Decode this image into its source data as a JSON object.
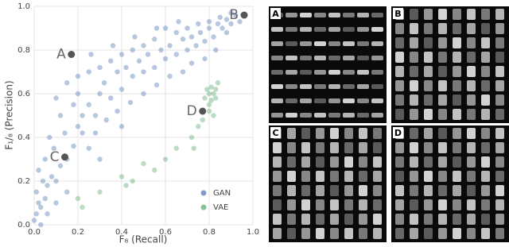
{
  "chart_data": {
    "type": "scatter",
    "xlabel": "F₈ (Recall)",
    "ylabel": "F₁/₈ (Precision)",
    "xlim": [
      0,
      1
    ],
    "ylim": [
      0,
      1
    ],
    "xticks": [
      {
        "value": 0,
        "label": "0.0"
      },
      {
        "value": 0.2,
        "label": "0.2"
      },
      {
        "value": 0.4,
        "label": "0.4"
      },
      {
        "value": 0.6,
        "label": "0.6"
      },
      {
        "value": 0.8,
        "label": "0.8"
      },
      {
        "value": 1,
        "label": "1.0"
      }
    ],
    "yticks": [
      {
        "value": 0,
        "label": "0.0"
      },
      {
        "value": 0.2,
        "label": "0.2"
      },
      {
        "value": 0.4,
        "label": "0.4"
      },
      {
        "value": 0.6,
        "label": "0.6"
      },
      {
        "value": 0.8,
        "label": "0.8"
      },
      {
        "value": 1,
        "label": "1.0"
      }
    ],
    "grid": true,
    "legend": "lower right",
    "series": [
      {
        "name": "GAN",
        "color": "#4c72b0",
        "x": [
          0.0,
          0.01,
          0.02,
          0.01,
          0.03,
          0.05,
          0.04,
          0.06,
          0.08,
          0.02,
          0.1,
          0.12,
          0.09,
          0.15,
          0.05,
          0.18,
          0.2,
          0.22,
          0.12,
          0.25,
          0.28,
          0.3,
          0.2,
          0.32,
          0.35,
          0.38,
          0.4,
          0.42,
          0.45,
          0.48,
          0.5,
          0.52,
          0.55,
          0.58,
          0.6,
          0.62,
          0.65,
          0.68,
          0.7,
          0.72,
          0.74,
          0.76,
          0.78,
          0.8,
          0.82,
          0.84,
          0.86,
          0.88,
          0.9,
          0.92,
          0.94,
          0.85,
          0.88,
          0.9,
          0.8,
          0.75,
          0.7,
          0.65,
          0.6,
          0.55,
          0.5,
          0.45,
          0.4,
          0.35,
          0.3,
          0.25,
          0.2,
          0.15,
          0.1,
          0.28,
          0.33,
          0.38,
          0.44,
          0.5,
          0.56,
          0.62,
          0.3,
          0.25,
          0.4,
          0.18,
          0.22,
          0.14,
          0.07,
          0.26,
          0.36,
          0.46,
          0.56,
          0.66,
          0.03,
          0.06,
          0.15,
          0.1,
          0.78,
          0.72,
          0.68,
          0.83
        ],
        "y": [
          0.02,
          0.05,
          0.1,
          0.15,
          0.08,
          0.12,
          0.2,
          0.18,
          0.22,
          0.25,
          0.2,
          0.27,
          0.35,
          0.3,
          0.3,
          0.36,
          0.45,
          0.42,
          0.5,
          0.55,
          0.5,
          0.6,
          0.6,
          0.65,
          0.58,
          0.7,
          0.62,
          0.72,
          0.68,
          0.75,
          0.7,
          0.78,
          0.72,
          0.8,
          0.76,
          0.82,
          0.78,
          0.85,
          0.8,
          0.86,
          0.82,
          0.88,
          0.84,
          0.9,
          0.86,
          0.92,
          0.9,
          0.94,
          0.92,
          0.96,
          0.93,
          0.95,
          0.88,
          0.97,
          0.93,
          0.92,
          0.9,
          0.88,
          0.9,
          0.85,
          0.82,
          0.8,
          0.78,
          0.75,
          0.72,
          0.7,
          0.68,
          0.65,
          0.58,
          0.42,
          0.48,
          0.52,
          0.56,
          0.6,
          0.64,
          0.68,
          0.3,
          0.35,
          0.45,
          0.55,
          0.5,
          0.42,
          0.4,
          0.78,
          0.82,
          0.86,
          0.9,
          0.93,
          0.0,
          0.05,
          0.15,
          0.1,
          0.76,
          0.74,
          0.7,
          0.8
        ]
      },
      {
        "name": "VAE",
        "color": "#55a868",
        "x": [
          0.8,
          0.82,
          0.81,
          0.83,
          0.79,
          0.84,
          0.8,
          0.82,
          0.78,
          0.81,
          0.83,
          0.8,
          0.77,
          0.75,
          0.72,
          0.73,
          0.65,
          0.6,
          0.55,
          0.5,
          0.45,
          0.4,
          0.3,
          0.22,
          0.2,
          0.42
        ],
        "y": [
          0.55,
          0.6,
          0.63,
          0.58,
          0.62,
          0.65,
          0.52,
          0.5,
          0.58,
          0.57,
          0.62,
          0.6,
          0.48,
          0.45,
          0.4,
          0.35,
          0.35,
          0.3,
          0.25,
          0.28,
          0.2,
          0.22,
          0.15,
          0.08,
          0.12,
          0.18
        ]
      }
    ],
    "annotations": [
      {
        "label": "A",
        "x": 0.17,
        "y": 0.78
      },
      {
        "label": "B",
        "x": 0.96,
        "y": 0.96
      },
      {
        "label": "C",
        "x": 0.14,
        "y": 0.31
      },
      {
        "label": "D",
        "x": 0.77,
        "y": 0.52
      }
    ]
  },
  "panels": [
    {
      "label": "A"
    },
    {
      "label": "B"
    },
    {
      "label": "C"
    },
    {
      "label": "D"
    }
  ]
}
